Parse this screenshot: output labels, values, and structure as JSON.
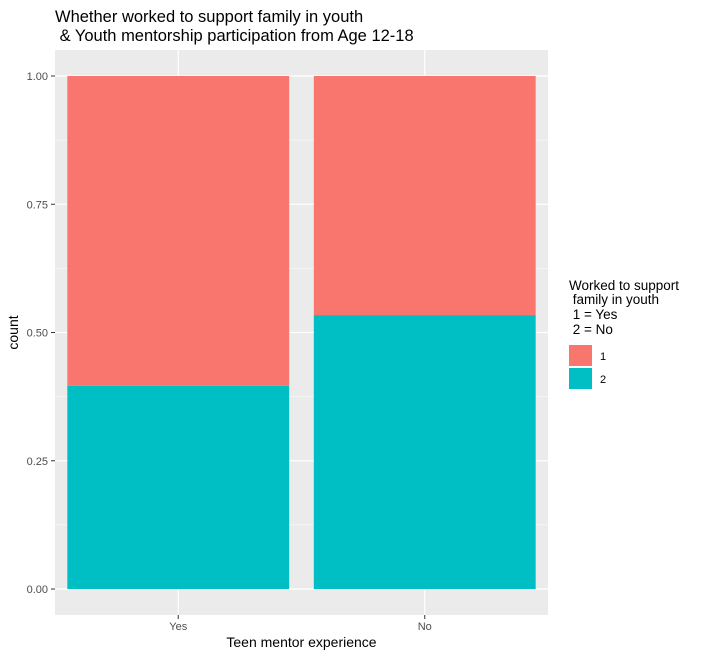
{
  "chart_data": {
    "type": "bar",
    "stacked": true,
    "title_lines": [
      "Whether worked to support family in youth",
      " & Youth mentorship participation from Age 12-18"
    ],
    "xlabel": "Teen mentor experience",
    "ylabel": "count",
    "categories": [
      "Yes",
      "No"
    ],
    "ylim": [
      0,
      1
    ],
    "yticks": [
      0,
      0.25,
      0.5,
      0.75,
      1
    ],
    "ytick_labels": [
      "0.00",
      "0.25",
      "0.50",
      "0.75",
      "1.00"
    ],
    "series": [
      {
        "name": "1",
        "color": "#F8766D",
        "values": [
          0.604,
          0.466
        ]
      },
      {
        "name": "2",
        "color": "#00BFC4",
        "values": [
          0.396,
          0.534
        ]
      }
    ],
    "stack_order_bottom_to_top": [
      "2",
      "1"
    ],
    "grid": true,
    "legend": {
      "placement": "right",
      "title_lines": [
        "Worked to support",
        " family in youth",
        " 1 = Yes",
        " 2 = No"
      ],
      "entries": [
        "1",
        "2"
      ]
    },
    "colors": {
      "panel_background": "#EBEBEB",
      "grid": "#FFFFFF"
    }
  }
}
